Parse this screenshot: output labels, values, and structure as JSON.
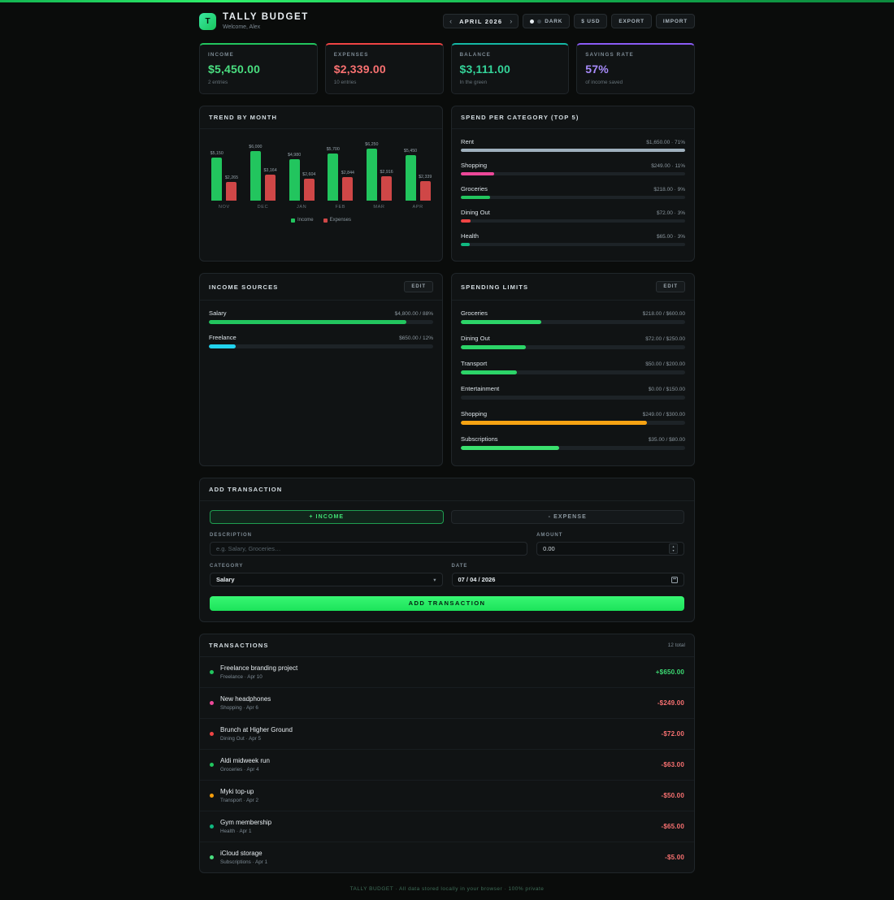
{
  "app": {
    "title": "TALLY BUDGET",
    "logo_letter": "T",
    "welcome": "Welcome, Alex",
    "footer": "TALLY BUDGET · All data stored locally in your browser · 100% private"
  },
  "icons": {
    "chevron_left": "‹",
    "chevron_right": "›",
    "chevron_down": "▾",
    "stepper_up": "▲",
    "stepper_down": "▼"
  },
  "header": {
    "month_label": "APRIL 2026",
    "theme_label": "DARK",
    "currency_label": "$ USD",
    "export_label": "EXPORT",
    "import_label": "IMPORT"
  },
  "summary_cards": [
    {
      "label": "INCOME",
      "value": "$5,450.00",
      "sub": "2 entries",
      "accent": "#22c55e",
      "value_color": "#4ade80"
    },
    {
      "label": "EXPENSES",
      "value": "$2,339.00",
      "sub": "10 entries",
      "accent": "#ef4444",
      "value_color": "#f87171"
    },
    {
      "label": "BALANCE",
      "value": "$3,111.00",
      "sub": "In the green",
      "accent": "#14b8a6",
      "value_color": "#34d399"
    },
    {
      "label": "SAVINGS RATE",
      "value": "57%",
      "sub": "of income saved",
      "accent": "#8b5cf6",
      "value_color": "#a78bfa"
    }
  ],
  "chart_data": {
    "type": "bar",
    "title": "TREND BY MONTH",
    "categories": [
      "NOV",
      "DEC",
      "JAN",
      "FEB",
      "MAR",
      "APR"
    ],
    "series": [
      {
        "name": "Income",
        "color": "#22c55e",
        "values": [
          5150,
          6000,
          4980,
          5700,
          6250,
          5450
        ],
        "labels": [
          "$5,150",
          "$6,000",
          "$4,980",
          "$5,700",
          "$6,250",
          "$5,450"
        ]
      },
      {
        "name": "Expenses",
        "color": "#cf4747",
        "values": [
          2265,
          3164,
          2604,
          2844,
          2916,
          2339
        ],
        "labels": [
          "$2,265",
          "$3,164",
          "$2,604",
          "$2,844",
          "$2,916",
          "$2,339"
        ]
      }
    ],
    "ylim": [
      0,
      6250
    ],
    "legend_position": "bottom",
    "grid": false
  },
  "spend_per_category": {
    "title": "SPEND PER CATEGORY (TOP 5)",
    "items": [
      {
        "name": "Rent",
        "detail": "$1,650.00 · 71%",
        "fill_pct": 100,
        "color": "#9fb0bd"
      },
      {
        "name": "Shopping",
        "detail": "$249.00 · 11%",
        "fill_pct": 15,
        "color": "#ec4899"
      },
      {
        "name": "Groceries",
        "detail": "$218.00 · 9%",
        "fill_pct": 13,
        "color": "#22c55e"
      },
      {
        "name": "Dining Out",
        "detail": "$72.00 · 3%",
        "fill_pct": 4.5,
        "color": "#ef4444"
      },
      {
        "name": "Health",
        "detail": "$65.00 · 3%",
        "fill_pct": 4,
        "color": "#10b981"
      }
    ]
  },
  "income_sources": {
    "title": "INCOME SOURCES",
    "edit_label": "EDIT",
    "items": [
      {
        "name": "Salary",
        "detail": "$4,800.00 / 88%",
        "fill_pct": 88,
        "color": "#22c55e"
      },
      {
        "name": "Freelance",
        "detail": "$650.00 / 12%",
        "fill_pct": 12,
        "color": "#22d3ee"
      }
    ]
  },
  "spending_limits": {
    "title": "SPENDING LIMITS",
    "edit_label": "EDIT",
    "items": [
      {
        "name": "Groceries",
        "detail": "$218.00 / $600.00",
        "fill_pct": 36,
        "color": "#2cd468"
      },
      {
        "name": "Dining Out",
        "detail": "$72.00 / $250.00",
        "fill_pct": 29,
        "color": "#2cd468"
      },
      {
        "name": "Transport",
        "detail": "$50.00 / $200.00",
        "fill_pct": 25,
        "color": "#2cd468"
      },
      {
        "name": "Entertainment",
        "detail": "$0.00 / $150.00",
        "fill_pct": 0,
        "color": "#2cd468"
      },
      {
        "name": "Shopping",
        "detail": "$249.00 / $300.00",
        "fill_pct": 83,
        "color": "#f6a313"
      },
      {
        "name": "Subscriptions",
        "detail": "$35.00 / $80.00",
        "fill_pct": 44,
        "color": "#3ae06e"
      }
    ]
  },
  "add_transaction": {
    "title": "ADD TRANSACTION",
    "income_tab": "+ INCOME",
    "expense_tab": "- EXPENSE",
    "description_label": "DESCRIPTION",
    "description_placeholder": "e.g. Salary, Groceries…",
    "amount_label": "AMOUNT",
    "amount_value": "0.00",
    "category_label": "CATEGORY",
    "category_value": "Salary",
    "date_label": "DATE",
    "date_value": "07 / 04 / 2026",
    "submit_label": "ADD TRANSACTION"
  },
  "transactions": {
    "title": "TRANSACTIONS",
    "count": "12 total",
    "items": [
      {
        "title": "Freelance branding project",
        "meta": "Freelance · Apr 10",
        "amount": "+$650.00",
        "positive": true,
        "dot": "#22c55e"
      },
      {
        "title": "New headphones",
        "meta": "Shopping · Apr 6",
        "amount": "-$249.00",
        "positive": false,
        "dot": "#ec4899"
      },
      {
        "title": "Brunch at Higher Ground",
        "meta": "Dining Out · Apr 5",
        "amount": "-$72.00",
        "positive": false,
        "dot": "#ef4444"
      },
      {
        "title": "Aldi midweek run",
        "meta": "Groceries · Apr 4",
        "amount": "-$63.00",
        "positive": false,
        "dot": "#22c55e"
      },
      {
        "title": "Myki top-up",
        "meta": "Transport · Apr 2",
        "amount": "-$50.00",
        "positive": false,
        "dot": "#f59e0b"
      },
      {
        "title": "Gym membership",
        "meta": "Health · Apr 1",
        "amount": "-$65.00",
        "positive": false,
        "dot": "#10b981"
      },
      {
        "title": "iCloud storage",
        "meta": "Subscriptions · Apr 1",
        "amount": "-$5.00",
        "positive": false,
        "dot": "#4ade80"
      }
    ]
  }
}
